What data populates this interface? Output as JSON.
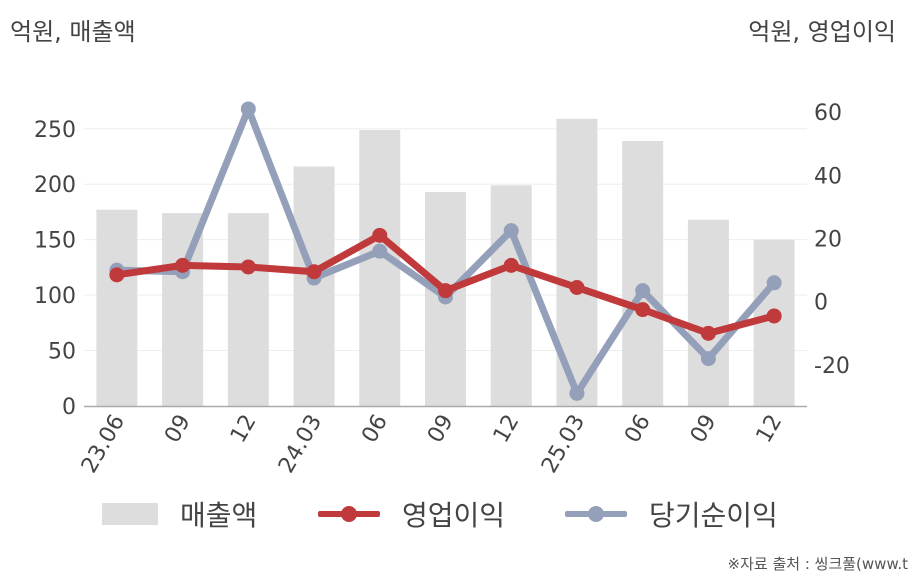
{
  "header": {
    "left_unit": "억원, 매출액",
    "right_unit": "억원, 영업이익"
  },
  "legend": {
    "bar_label": "매출액",
    "op_label": "영업이익",
    "net_label": "당기순이익"
  },
  "source": "※자료 출처 : 씽크풀(www.t",
  "colors": {
    "bar": "#dddddd",
    "op": "#c0393b",
    "net": "#94a0b9",
    "grid": "#eeeeee",
    "axis": "#aaaaaa"
  },
  "chart_data": {
    "type": "bar",
    "categories": [
      "23.06",
      "09",
      "12",
      "24.03",
      "06",
      "09",
      "12",
      "25.03",
      "06",
      "09",
      "12"
    ],
    "y_left": {
      "ticks": [
        0,
        50,
        100,
        150,
        200,
        250
      ],
      "range": [
        0,
        285
      ]
    },
    "y_right": {
      "ticks": [
        -20,
        0,
        20,
        40,
        60
      ],
      "range": [
        -33,
        67
      ]
    },
    "grid": true,
    "legend_position": "bottom",
    "series": [
      {
        "name": "매출액",
        "type": "bar",
        "axis": "left",
        "values": [
          177,
          174,
          174,
          216,
          249,
          193,
          199,
          259,
          239,
          168,
          150
        ]
      },
      {
        "name": "영업이익",
        "type": "line",
        "axis": "right",
        "values": [
          8.5,
          11.5,
          11,
          9.5,
          21,
          3.5,
          11.5,
          4.5,
          -2.5,
          -10,
          -4.5
        ]
      },
      {
        "name": "당기순이익",
        "type": "line",
        "axis": "right",
        "values": [
          10,
          9.5,
          61,
          7.5,
          16,
          1.5,
          22.5,
          -29,
          3.5,
          -18,
          6
        ]
      }
    ]
  }
}
